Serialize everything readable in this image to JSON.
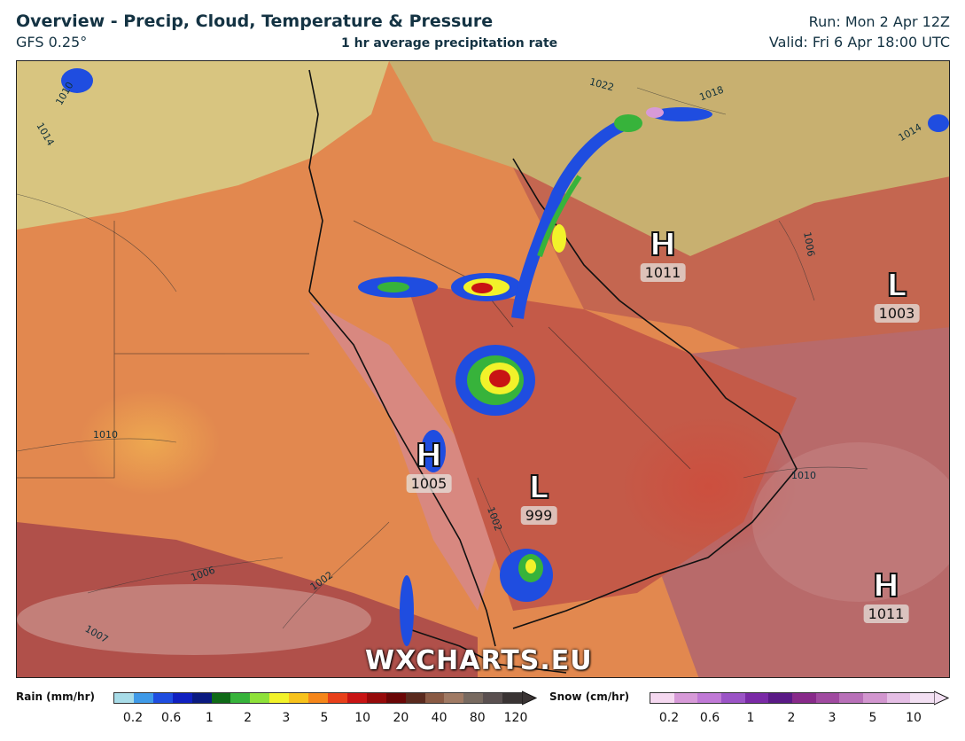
{
  "header": {
    "title": "Overview - Precip, Cloud, Temperature & Pressure",
    "model": "GFS 0.25°",
    "product": "1 hr average precipitation rate",
    "run": "Run: Mon 2 Apr 12Z",
    "valid": "Valid: Fri 6 Apr 18:00 UTC"
  },
  "watermark": "WXCHARTS.EU",
  "pressure_systems": [
    {
      "type": "H",
      "value": "1011"
    },
    {
      "type": "L",
      "value": "1003"
    },
    {
      "type": "H",
      "value": "1005"
    },
    {
      "type": "L",
      "value": "999"
    },
    {
      "type": "H",
      "value": "1011"
    }
  ],
  "isobar_labels": [
    "1014",
    "1010",
    "1006",
    "1007",
    "1002",
    "1002",
    "1010",
    "1006",
    "1010",
    "1018",
    "1014",
    "1022"
  ],
  "legend": {
    "rain": {
      "title": "Rain (mm/hr)",
      "ticks": [
        "0.2",
        "0.6",
        "1",
        "2",
        "3",
        "5",
        "10",
        "20",
        "40",
        "80",
        "120"
      ],
      "colors": [
        "#a8dce8",
        "#3f9ae8",
        "#1f4de0",
        "#1020c0",
        "#0a1a80",
        "#0f6a17",
        "#37b33b",
        "#8ee13a",
        "#f2f22a",
        "#f7c21c",
        "#f5861a",
        "#e8401a",
        "#c81414",
        "#960a0a",
        "#6a0606",
        "#5a2a1e",
        "#8a5a44",
        "#a07a64",
        "#786a60",
        "#5a5050",
        "#3a3434"
      ]
    },
    "snow": {
      "title": "Snow (cm/hr)",
      "ticks": [
        "0.2",
        "0.6",
        "1",
        "2",
        "3",
        "5",
        "10"
      ],
      "colors": [
        "#f5d8f0",
        "#d79ad8",
        "#c079d6",
        "#9b54c6",
        "#7a2aa6",
        "#5a1a86",
        "#882a8a",
        "#a04aa0",
        "#b870b8",
        "#d296cf",
        "#e5bee5",
        "#f3e0f3"
      ]
    }
  }
}
